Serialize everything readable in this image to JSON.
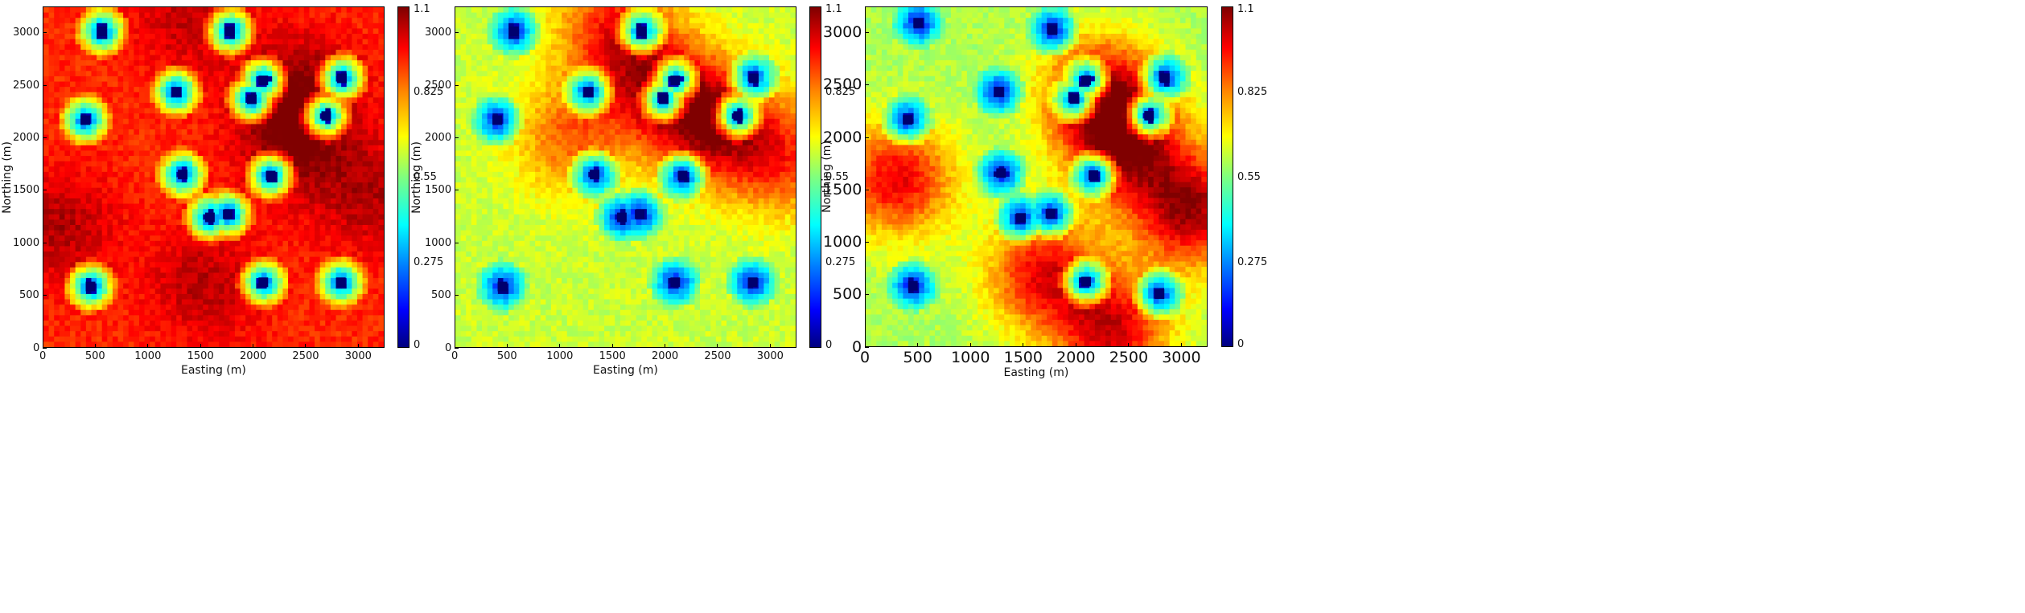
{
  "figure": {
    "panels": [
      {
        "id": "panel-1",
        "xlabel": "Easting (m)",
        "ylabel": "Northing (m)",
        "xticks": [
          "0",
          "500",
          "1000",
          "1500",
          "2000",
          "2500",
          "3000"
        ],
        "yticks": [
          "0",
          "500",
          "1000",
          "1500",
          "2000",
          "2500",
          "3000"
        ],
        "colorbar_ticks": [
          "0",
          "0.275",
          "0.55",
          "0.825",
          "1.1"
        ]
      },
      {
        "id": "panel-2",
        "xlabel": "Easting (m)",
        "ylabel": "Northing (m)",
        "xticks": [
          "0",
          "500",
          "1000",
          "1500",
          "2000",
          "2500",
          "3000"
        ],
        "yticks": [
          "0",
          "500",
          "1000",
          "1500",
          "2000",
          "2500",
          "3000"
        ],
        "colorbar_ticks": [
          "0",
          "0.275",
          "0.55",
          "0.825",
          "1.1"
        ]
      },
      {
        "id": "panel-3",
        "xlabel": "Easting (m)",
        "ylabel": "Northing (m)",
        "xticks": [
          "0",
          "500",
          "1000",
          "1500",
          "2000",
          "2500",
          "3000"
        ],
        "yticks": [
          "0",
          "500",
          "1000",
          "1500",
          "2000",
          "2500",
          "3000"
        ],
        "colorbar_ticks": [
          "0",
          "0.275",
          "0.55",
          "0.825",
          "1.1"
        ]
      }
    ]
  },
  "chart_data": [
    {
      "type": "heatmap",
      "xlim": [
        0,
        3250
      ],
      "ylim": [
        0,
        3250
      ],
      "colormap": "jet",
      "zlim": [
        0,
        1.1
      ],
      "background_value": 0.92,
      "wells": [
        {
          "x": 560,
          "y": 3020
        },
        {
          "x": 1780,
          "y": 3020
        },
        {
          "x": 2850,
          "y": 2570
        },
        {
          "x": 2100,
          "y": 2550
        },
        {
          "x": 1270,
          "y": 2440
        },
        {
          "x": 1990,
          "y": 2370
        },
        {
          "x": 400,
          "y": 2170
        },
        {
          "x": 2700,
          "y": 2210
        },
        {
          "x": 1330,
          "y": 1650
        },
        {
          "x": 2170,
          "y": 1640
        },
        {
          "x": 1760,
          "y": 1270
        },
        {
          "x": 1590,
          "y": 1240
        },
        {
          "x": 450,
          "y": 580
        },
        {
          "x": 2100,
          "y": 620
        },
        {
          "x": 2840,
          "y": 620
        }
      ],
      "dark_zones": [
        {
          "x": 2450,
          "y": 2450,
          "v": 1.08
        },
        {
          "x": 2380,
          "y": 1950,
          "v": 1.06
        },
        {
          "x": 150,
          "y": 1150,
          "v": 1.05
        },
        {
          "x": 1550,
          "y": 600,
          "v": 1.04
        },
        {
          "x": 3100,
          "y": 1450,
          "v": 1.04
        },
        {
          "x": 1400,
          "y": 3150,
          "v": 1.03
        }
      ]
    },
    {
      "type": "heatmap",
      "xlim": [
        0,
        3250
      ],
      "ylim": [
        0,
        3250
      ],
      "colormap": "jet",
      "zlim": [
        0,
        1.1
      ],
      "background_value": 0.63,
      "wells": [
        {
          "x": 560,
          "y": 3020
        },
        {
          "x": 1780,
          "y": 3020
        },
        {
          "x": 2850,
          "y": 2570
        },
        {
          "x": 2100,
          "y": 2550
        },
        {
          "x": 1270,
          "y": 2440
        },
        {
          "x": 1990,
          "y": 2370
        },
        {
          "x": 400,
          "y": 2170
        },
        {
          "x": 2700,
          "y": 2210
        },
        {
          "x": 1330,
          "y": 1650
        },
        {
          "x": 2170,
          "y": 1640
        },
        {
          "x": 1760,
          "y": 1270
        },
        {
          "x": 1590,
          "y": 1240
        },
        {
          "x": 450,
          "y": 580
        },
        {
          "x": 2100,
          "y": 620
        },
        {
          "x": 2840,
          "y": 620
        }
      ],
      "dark_zones": [
        {
          "x": 1900,
          "y": 2500,
          "v": 0.95
        },
        {
          "x": 2450,
          "y": 2150,
          "v": 1.06
        },
        {
          "x": 1500,
          "y": 3050,
          "v": 0.92
        },
        {
          "x": 3100,
          "y": 1800,
          "v": 0.9
        },
        {
          "x": 1100,
          "y": 2000,
          "v": 0.85
        }
      ]
    },
    {
      "type": "heatmap",
      "xlim": [
        0,
        3250
      ],
      "ylim": [
        0,
        3250
      ],
      "colormap": "jet",
      "zlim": [
        0,
        1.1
      ],
      "background_value": 0.6,
      "wells": [
        {
          "x": 500,
          "y": 3100
        },
        {
          "x": 1780,
          "y": 3030
        },
        {
          "x": 2850,
          "y": 2570
        },
        {
          "x": 2100,
          "y": 2550
        },
        {
          "x": 1270,
          "y": 2440
        },
        {
          "x": 1990,
          "y": 2370
        },
        {
          "x": 400,
          "y": 2170
        },
        {
          "x": 2700,
          "y": 2210
        },
        {
          "x": 1290,
          "y": 1660
        },
        {
          "x": 2170,
          "y": 1640
        },
        {
          "x": 1760,
          "y": 1270
        },
        {
          "x": 1480,
          "y": 1230
        },
        {
          "x": 450,
          "y": 580
        },
        {
          "x": 2100,
          "y": 620
        },
        {
          "x": 2800,
          "y": 500
        }
      ],
      "dark_zones": [
        {
          "x": 2250,
          "y": 2400,
          "v": 1.05
        },
        {
          "x": 3100,
          "y": 1300,
          "v": 1.06
        },
        {
          "x": 300,
          "y": 1600,
          "v": 0.98
        },
        {
          "x": 1700,
          "y": 700,
          "v": 0.97
        },
        {
          "x": 2350,
          "y": 150,
          "v": 1.0
        },
        {
          "x": 2500,
          "y": 1900,
          "v": 1.0
        }
      ]
    }
  ]
}
